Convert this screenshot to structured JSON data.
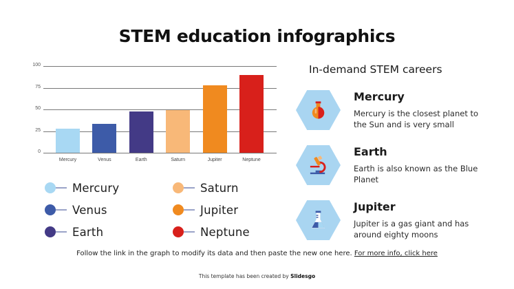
{
  "title": "STEM education infographics",
  "chart_data": {
    "type": "bar",
    "title": "",
    "xlabel": "",
    "ylabel": "",
    "ylim": [
      0,
      100
    ],
    "yticks": [
      0,
      25,
      50,
      75,
      100
    ],
    "grid": true,
    "legend_position": "bottom",
    "categories": [
      "Mercury",
      "Venus",
      "Earth",
      "Saturn",
      "Jupiter",
      "Neptune"
    ],
    "values": [
      28,
      33,
      48,
      49,
      78,
      90
    ],
    "colors": [
      "#a8d8f3",
      "#3d5ba8",
      "#433a86",
      "#f8b878",
      "#f08a1f",
      "#d8201b"
    ]
  },
  "legend": [
    {
      "label": "Mercury",
      "color": "#a8d8f3"
    },
    {
      "label": "Venus",
      "color": "#3d5ba8"
    },
    {
      "label": "Earth",
      "color": "#433a86"
    },
    {
      "label": "Saturn",
      "color": "#f8b878"
    },
    {
      "label": "Jupiter",
      "color": "#f08a1f"
    },
    {
      "label": "Neptune",
      "color": "#d8201b"
    }
  ],
  "careers": {
    "title": "In-demand STEM careers",
    "items": [
      {
        "name": "Mercury",
        "desc": "Mercury is the closest planet to the Sun and is very small",
        "icon": "flask-round-icon"
      },
      {
        "name": "Earth",
        "desc": "Earth is also known as the Blue Planet",
        "icon": "microscope-icon"
      },
      {
        "name": "Jupiter",
        "desc": "Jupiter is a gas giant and has around eighty moons",
        "icon": "erlenmeyer-flask-icon"
      }
    ]
  },
  "footnote": {
    "text": "Follow the link in the graph to modify its data and then paste the new one here. ",
    "link": "For more info, click here"
  },
  "credit": {
    "text": "This template has been created by ",
    "brand": "Slidesgo"
  }
}
